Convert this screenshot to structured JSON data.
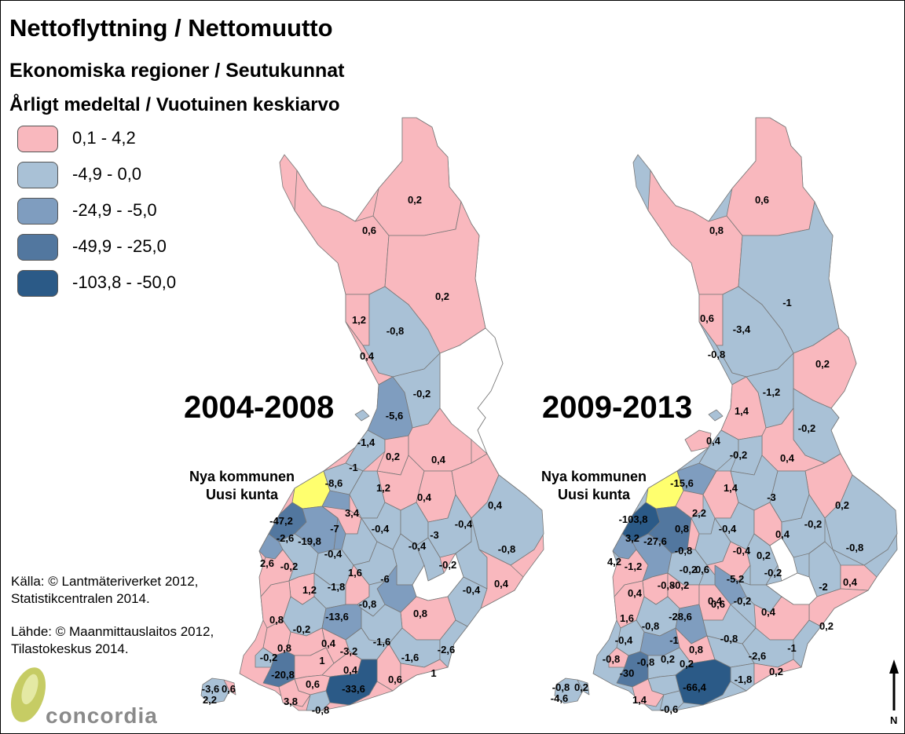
{
  "title": "Nettoflyttning / Nettomuutto",
  "subtitle1": "Ekonomiska regioner / Seutukunnat",
  "subtitle2": "Årligt medeltal / Vuotuinen keskiarvo",
  "legend": [
    {
      "label": "0,1 - 4,2",
      "color": "#F9B8BE"
    },
    {
      "label": "-4,9 - 0,0",
      "color": "#A9C1D6"
    },
    {
      "label": "-24,9 - -5,0",
      "color": "#7F9DBF"
    },
    {
      "label": "-49,9 - -25,0",
      "color": "#52779F"
    },
    {
      "label": "-103,8 - -50,0",
      "color": "#2B5A87"
    }
  ],
  "source_sv": [
    "Källa: © Lantmäteriverket 2012,",
    "Statistikcentralen 2014."
  ],
  "source_fi": [
    "Lähde: © Maanmittauslaitos 2012,",
    "Tilastokeskus 2014."
  ],
  "logo_text": "concordia",
  "new_municipality_label": [
    "Nya kommunen",
    "Uusi kunta"
  ],
  "maps": [
    {
      "period": "2004-2008",
      "values": [
        "0,2",
        "0,6",
        "0,2",
        "1,2",
        "-0,8",
        "0,4",
        "-0,2",
        "-5,6",
        "-1,4",
        "0,2",
        "0,4",
        "-1",
        "-8,6",
        "1,2",
        "0,4",
        "0,4",
        "3,4",
        "-47,2",
        "-7",
        "-0,4",
        "-2,6",
        "-19,8",
        "-3",
        "-0,4",
        "-0,4",
        "-0,8",
        "2,6",
        "-0,2",
        "-0,4",
        "1,6",
        "-6",
        "-0,2",
        "1,2",
        "-1,8",
        "-0,4",
        "0,4",
        "-0,8",
        "0,8",
        "0,8",
        "-13,6",
        "-0,2",
        "0,4",
        "-1,6",
        "-3,2",
        "-1,6",
        "-2,6",
        "-0,2",
        "1",
        "0,8",
        "-20,8",
        "0,4",
        "0,6",
        "1",
        "-3,6",
        "0,6",
        "2,2",
        "0,6",
        "-33,6",
        "3,8",
        "-0,8"
      ]
    },
    {
      "period": "2009-2013",
      "values": [
        "0,6",
        "0,8",
        "-1",
        "0,6",
        "-3,4",
        "-0,8",
        "0,2",
        "-1,2",
        "1,4",
        "-0,2",
        "0,4",
        "-0,2",
        "0,4",
        "-15,6",
        "1,4",
        "-3",
        "0,2",
        "-103,8",
        "2,2",
        "-0,2",
        "0,4",
        "3,2",
        "-27,6",
        "0,8",
        "-0,4",
        "-0,8",
        "4,2",
        "-1,2",
        "-0,8",
        "0,2",
        "-0,4",
        "-0,2",
        "-5,2",
        "-0,2",
        "-2",
        "0,4",
        "0,4",
        "-0,2",
        "0,6",
        "-0,2",
        "-0,8",
        "0,4",
        "-28,6",
        "0,6",
        "1,6",
        "0,4",
        "-0,4",
        "-1",
        "-0,8",
        "-2,6",
        "0,8",
        "-1",
        "-0,8",
        "0,2",
        "-30",
        "-0,8",
        "0,2",
        "-0,8",
        "0,2",
        "-66,4",
        "-1,8",
        "0,2",
        "-0,8",
        "-4,6",
        "0,2",
        "1,4",
        "-0,6"
      ]
    }
  ]
}
